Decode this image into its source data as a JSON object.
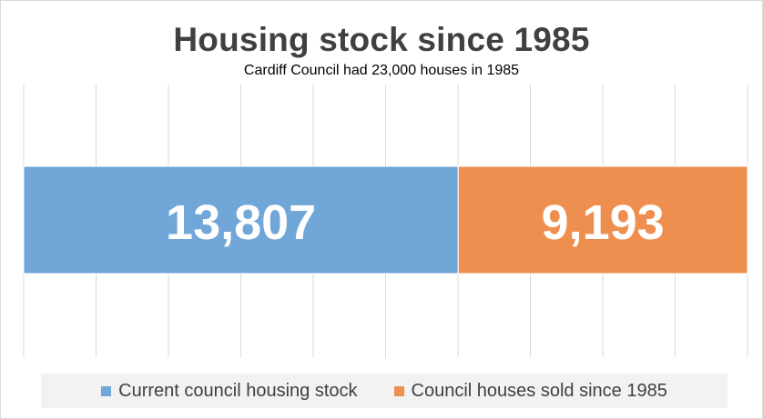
{
  "chart_data": {
    "type": "bar",
    "orientation": "horizontal",
    "stacked": true,
    "title": "Housing stock since 1985",
    "subtitle": "Cardiff Council had 23,000 houses in 1985",
    "categories": [
      ""
    ],
    "series": [
      {
        "name": "Current council housing stock",
        "values": [
          13807
        ],
        "label": "13,807",
        "color": "#70a6d8"
      },
      {
        "name": "Council houses sold since 1985",
        "values": [
          9193
        ],
        "label": "9,193",
        "color": "#ef8f4f"
      }
    ],
    "xlim": [
      0,
      23000
    ],
    "grid": true,
    "axis_labels_visible": false,
    "legend_position": "bottom"
  }
}
